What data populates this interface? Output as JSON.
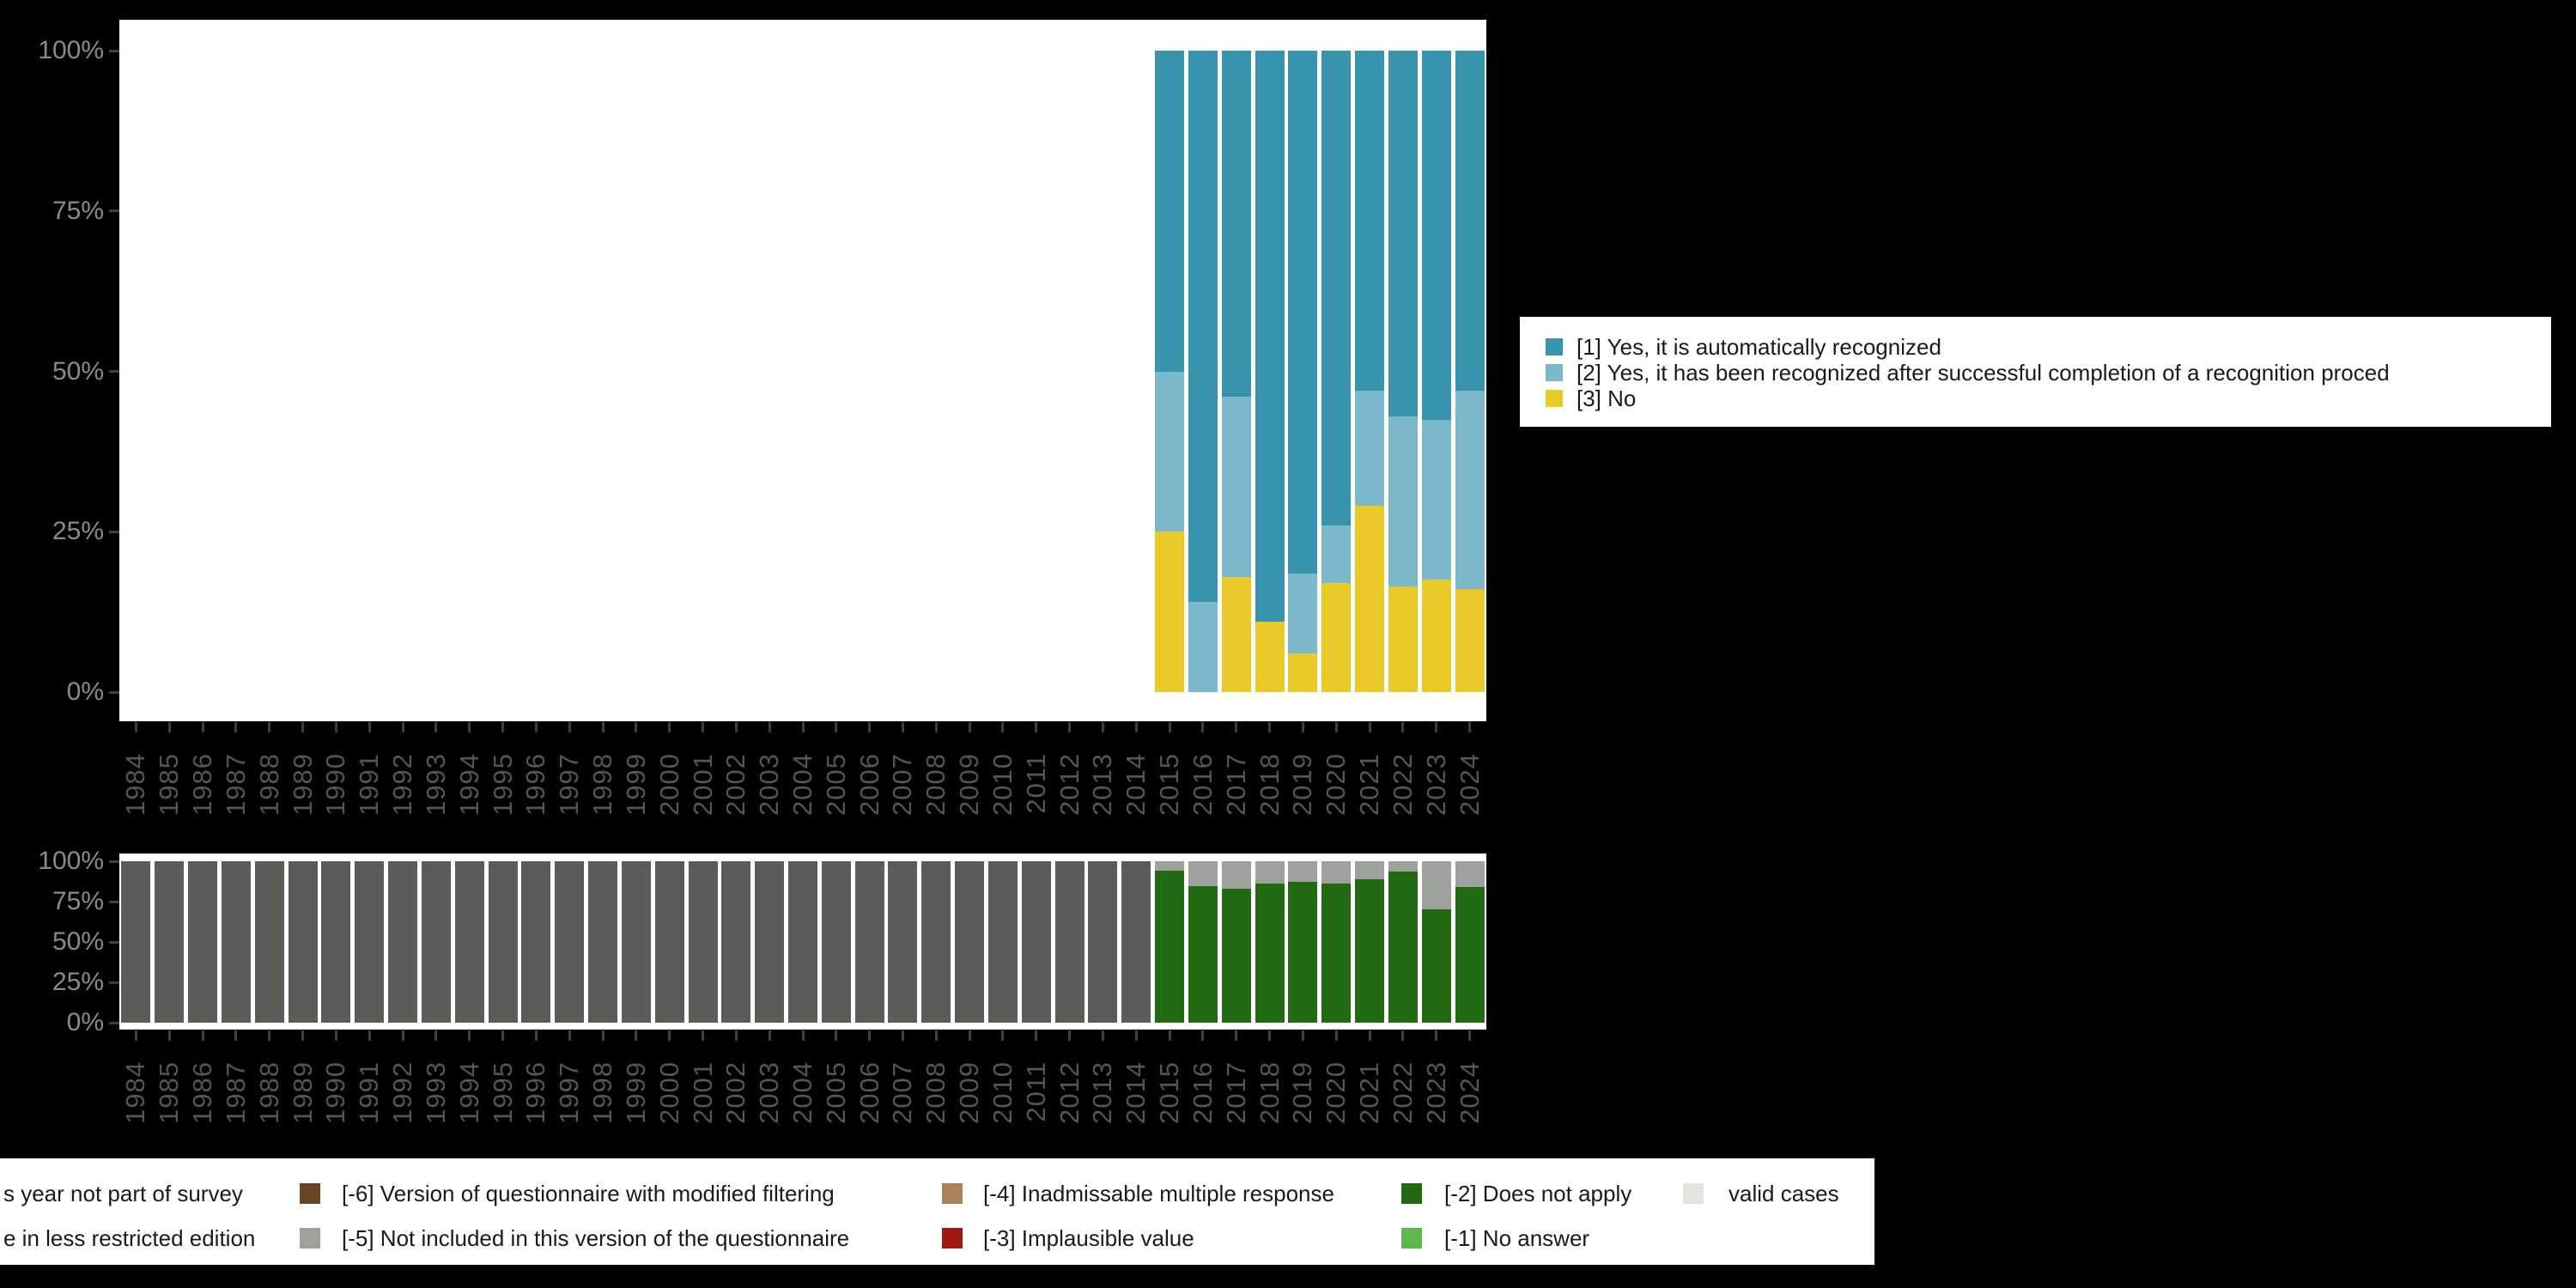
{
  "page": {
    "background": "#000000",
    "panel_background": "#ffffff",
    "axis_text_color_y": "#8a8a8a",
    "axis_text_color_x": "#555555"
  },
  "years": [
    1984,
    1985,
    1986,
    1987,
    1988,
    1989,
    1990,
    1991,
    1992,
    1993,
    1994,
    1995,
    1996,
    1997,
    1998,
    1999,
    2000,
    2001,
    2002,
    2003,
    2004,
    2005,
    2006,
    2007,
    2008,
    2009,
    2010,
    2011,
    2012,
    2013,
    2014,
    2015,
    2016,
    2017,
    2018,
    2019,
    2020,
    2021,
    2022,
    2023,
    2024
  ],
  "y_axis_ticks": [
    "0%",
    "25%",
    "50%",
    "75%",
    "100%"
  ],
  "chart_data": [
    {
      "type": "bar",
      "subtype": "stacked-100pct",
      "panel": "top",
      "title": "",
      "xlabel": "",
      "ylabel": "",
      "ylim": [
        0,
        100
      ],
      "categories": [
        1984,
        1985,
        1986,
        1987,
        1988,
        1989,
        1990,
        1991,
        1992,
        1993,
        1994,
        1995,
        1996,
        1997,
        1998,
        1999,
        2000,
        2001,
        2002,
        2003,
        2004,
        2005,
        2006,
        2007,
        2008,
        2009,
        2010,
        2011,
        2012,
        2013,
        2014,
        2015,
        2016,
        2017,
        2018,
        2019,
        2020,
        2021,
        2022,
        2023,
        2024
      ],
      "tick_labels_y": [
        "100%",
        "75%",
        "50%",
        "25%",
        "0%"
      ],
      "legend_position": "right",
      "grid": false,
      "series": [
        {
          "name": "[1] Yes, it is automatically recognized",
          "color": "#3894ac",
          "values": [
            null,
            null,
            null,
            null,
            null,
            null,
            null,
            null,
            null,
            null,
            null,
            null,
            null,
            null,
            null,
            null,
            null,
            null,
            null,
            null,
            null,
            null,
            null,
            null,
            null,
            null,
            null,
            null,
            null,
            null,
            null,
            50,
            86,
            54,
            89,
            81.5,
            74,
            53,
            57,
            57.5,
            53
          ]
        },
        {
          "name": "[2] Yes, it has been recognized after successful completion of a recognition proced",
          "color": "#7bb8c9",
          "values": [
            null,
            null,
            null,
            null,
            null,
            null,
            null,
            null,
            null,
            null,
            null,
            null,
            null,
            null,
            null,
            null,
            null,
            null,
            null,
            null,
            null,
            null,
            null,
            null,
            null,
            null,
            null,
            null,
            null,
            null,
            null,
            25,
            14,
            28,
            0,
            12.5,
            9,
            18,
            26.5,
            25,
            31
          ]
        },
        {
          "name": "[3] No",
          "color": "#e9c928",
          "values": [
            null,
            null,
            null,
            null,
            null,
            null,
            null,
            null,
            null,
            null,
            null,
            null,
            null,
            null,
            null,
            null,
            null,
            null,
            null,
            null,
            null,
            null,
            null,
            null,
            null,
            null,
            null,
            null,
            null,
            null,
            null,
            25,
            0,
            18,
            11,
            6,
            17,
            29,
            16.5,
            17.5,
            16
          ]
        }
      ]
    },
    {
      "type": "bar",
      "subtype": "stacked-100pct",
      "panel": "bottom",
      "title": "",
      "xlabel": "",
      "ylabel": "",
      "ylim": [
        0,
        100
      ],
      "categories": [
        1984,
        1985,
        1986,
        1987,
        1988,
        1989,
        1990,
        1991,
        1992,
        1993,
        1994,
        1995,
        1996,
        1997,
        1998,
        1999,
        2000,
        2001,
        2002,
        2003,
        2004,
        2005,
        2006,
        2007,
        2008,
        2009,
        2010,
        2011,
        2012,
        2013,
        2014,
        2015,
        2016,
        2017,
        2018,
        2019,
        2020,
        2021,
        2022,
        2023,
        2024
      ],
      "tick_labels_y": [
        "100%",
        "75%",
        "50%",
        "25%",
        "0%"
      ],
      "grid": false,
      "series": [
        {
          "name": "[-5] Not included in this version of the questionnaire",
          "color": "#9da29a",
          "values": [
            0,
            0,
            0,
            0,
            0,
            0,
            0,
            0,
            0,
            0,
            0,
            0,
            0,
            0,
            0,
            0,
            0,
            0,
            0,
            0,
            0,
            0,
            0,
            0,
            0,
            0,
            0,
            0,
            0,
            0,
            0,
            6,
            15.5,
            17,
            14,
            12.5,
            14,
            11,
            6.5,
            30,
            16
          ]
        },
        {
          "name": "[-2] Does not apply",
          "color": "#226b12",
          "values": [
            0,
            0,
            0,
            0,
            0,
            0,
            0,
            0,
            0,
            0,
            0,
            0,
            0,
            0,
            0,
            0,
            0,
            0,
            0,
            0,
            0,
            0,
            0,
            0,
            0,
            0,
            0,
            0,
            0,
            0,
            0,
            94,
            84.5,
            83,
            86,
            87.5,
            86,
            89,
            93.5,
            70,
            84
          ]
        },
        {
          "name": "year not part of survey",
          "color": "#585e55",
          "values": [
            100,
            100,
            100,
            100,
            100,
            100,
            100,
            100,
            100,
            100,
            100,
            100,
            100,
            100,
            100,
            100,
            100,
            100,
            100,
            100,
            100,
            100,
            100,
            100,
            100,
            100,
            100,
            100,
            100,
            100,
            100,
            0,
            0,
            0,
            0,
            0,
            0,
            0,
            0,
            0,
            0
          ]
        }
      ]
    }
  ],
  "top_legend": {
    "items": [
      {
        "label": "[1] Yes, it is automatically recognized",
        "color": "#3894ac"
      },
      {
        "label": "[2] Yes, it has been recognized after successful completion of a recognition proced",
        "color": "#7bb8c9"
      },
      {
        "label": "[3] No",
        "color": "#e9c928"
      }
    ]
  },
  "bottom_legend": {
    "rows": [
      [
        {
          "label": "s year not part of survey",
          "color": null
        },
        {
          "label": "[-6] Version of questionnaire with modified filtering",
          "color": "#6b4423"
        },
        {
          "label": "[-4] Inadmissable multiple response",
          "color": "#aa8159"
        },
        {
          "label": "[-2] Does not apply",
          "color": "#226b12"
        },
        {
          "label": "valid cases",
          "color": "#e2e6df"
        }
      ],
      [
        {
          "label": "e in less restricted edition",
          "color": null
        },
        {
          "label": "[-5] Not included in this version of the questionnaire",
          "color": "#9da29a"
        },
        {
          "label": "[-3] Implausible value",
          "color": "#a01812"
        },
        {
          "label": "[-1] No answer",
          "color": "#5cb84a"
        }
      ]
    ]
  }
}
